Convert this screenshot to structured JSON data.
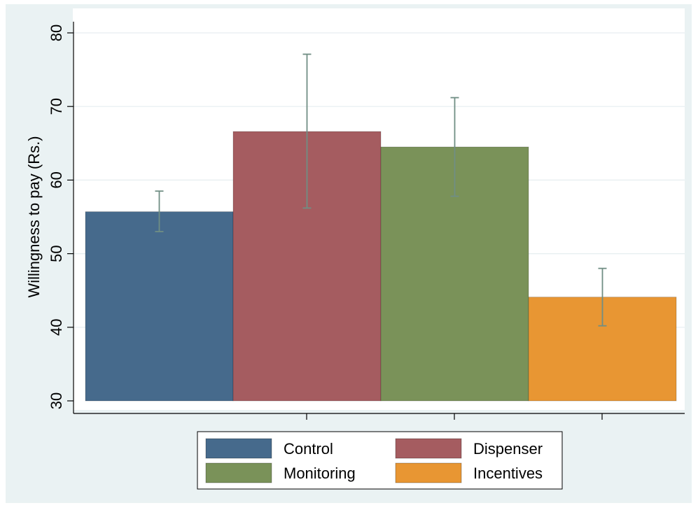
{
  "chart_data": {
    "type": "bar",
    "ylabel": "Willingness to pay (Rs.)",
    "ylim": [
      30,
      80
    ],
    "yticks": [
      30,
      40,
      50,
      60,
      70,
      80
    ],
    "grid": true,
    "legend_position": "bottom",
    "series": [
      {
        "name": "Control",
        "value": 55.7,
        "ci_low": 53.0,
        "ci_high": 58.5,
        "color": "#466a8c"
      },
      {
        "name": "Dispenser",
        "value": 66.6,
        "ci_low": 56.2,
        "ci_high": 77.1,
        "color": "#a55c60"
      },
      {
        "name": "Monitoring",
        "value": 64.5,
        "ci_low": 57.8,
        "ci_high": 71.2,
        "color": "#7a9259"
      },
      {
        "name": "Incentives",
        "value": 44.1,
        "ci_low": 40.2,
        "ci_high": 48.0,
        "color": "#e89633"
      }
    ],
    "errorbar_color": "#708e84"
  }
}
